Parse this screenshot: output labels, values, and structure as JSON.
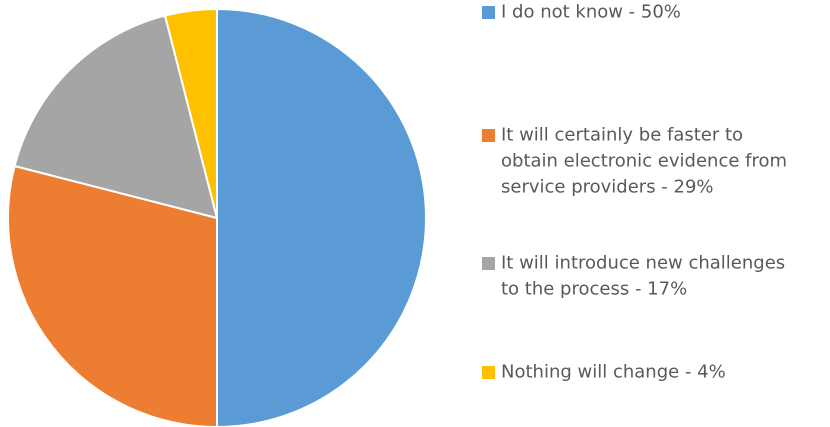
{
  "chart_data": {
    "type": "pie",
    "slices": [
      {
        "label_lines": [
          "I do not know - 50%"
        ],
        "value": 50,
        "color": "#5B9BD5"
      },
      {
        "label_lines": [
          "It will certainly be faster to",
          "obtain electronic evidence from",
          "service providers - 29%"
        ],
        "value": 29,
        "color": "#ED7D31"
      },
      {
        "label_lines": [
          "It will introduce new challenges",
          "to the process - 17%"
        ],
        "value": 17,
        "color": "#A5A5A5"
      },
      {
        "label_lines": [
          "Nothing will change - 4%"
        ],
        "value": 4,
        "color": "#FFC000"
      }
    ],
    "start_angle_deg": 0,
    "direction": "clockwise",
    "legend_position": "right"
  }
}
